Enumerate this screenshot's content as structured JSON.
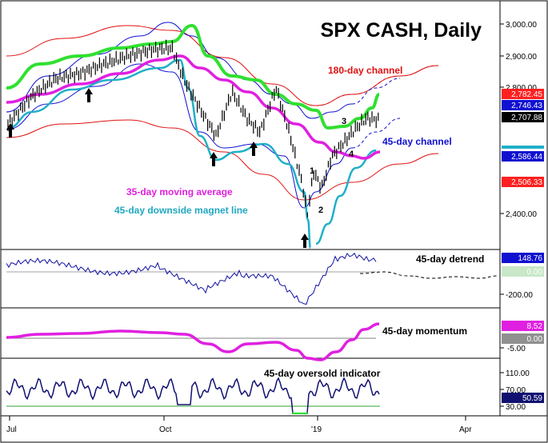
{
  "chart_data": [
    {
      "type": "line",
      "title": "SPX CASH, Daily",
      "ylim": [
        2330,
        3030
      ],
      "y_ticks": [
        "3,000.00",
        "2,900.00",
        "2,800.00",
        "2,400.00"
      ],
      "x_ticks": [
        "Jul",
        "Oct",
        "'19",
        "Apr"
      ],
      "annotations": {
        "channel_180": "180-day channel",
        "channel_45": "45-day channel",
        "ma_35": "35-day moving average",
        "magnet_45": "45-day downside magnet line",
        "wave_labels": [
          "1",
          "2",
          "3",
          "4"
        ]
      },
      "price_badges": [
        {
          "value": "2,782.45",
          "bg": "#ff2020",
          "fg": "#ffffff"
        },
        {
          "value": "2,746.43",
          "bg": "#1010d0",
          "fg": "#ffffff"
        },
        {
          "value": "2,707.88",
          "bg": "#000000",
          "fg": "#ffffff"
        },
        {
          "value": "2,586.44",
          "bg": "#1010d0",
          "fg": "#ffffff"
        },
        {
          "value": "2,506.33",
          "bg": "#ff2020",
          "fg": "#ffffff"
        }
      ],
      "series": [
        {
          "name": "",
          "color": "#000000",
          "kind": "price"
        },
        {
          "name": "35-day moving average",
          "color": "#e020e0"
        },
        {
          "name": "45-day downside magnet line",
          "color": "#20b0c8"
        },
        {
          "name": "45-day channel",
          "color": "#1010d0"
        },
        {
          "name": "180-day channel",
          "color": "#e01010"
        },
        {
          "name": "",
          "color": "#30e030",
          "kind": "upper band"
        }
      ],
      "arrow_lows": [
        "Jul",
        "Aug",
        "Oct",
        "Nov",
        "Dec"
      ]
    },
    {
      "type": "line",
      "title": "45-day detrend",
      "y_ticks": [
        "-200.00"
      ],
      "badges": [
        {
          "value": "148.76",
          "bg": "#1010d0",
          "fg": "#ffffff"
        },
        {
          "value": "0.00",
          "bg": "#c8e8c8",
          "fg": "#ffffff"
        }
      ],
      "series": [
        {
          "name": "45-day detrend",
          "color": "#1010a0"
        }
      ]
    },
    {
      "type": "line",
      "title": "45-day momentum",
      "y_ticks": [
        "-5.00"
      ],
      "badges": [
        {
          "value": "8.52",
          "bg": "#e020e0",
          "fg": "#ffffff"
        },
        {
          "value": "0.00",
          "bg": "#909090",
          "fg": "#ffffff"
        }
      ],
      "series": [
        {
          "name": "45-day momentum",
          "color": "#e020e0"
        }
      ]
    },
    {
      "type": "line",
      "title": "45-day oversold indicator",
      "y_ticks": [
        "110.00",
        "70.00",
        "30.00"
      ],
      "badges": [
        {
          "value": "50.59",
          "bg": "#101070",
          "fg": "#ffffff"
        }
      ],
      "series": [
        {
          "name": "45-day oversold indicator",
          "color": "#101070"
        }
      ]
    }
  ],
  "colors": {
    "price": "#000000",
    "ma": "#e020e0",
    "magnet": "#20b0c8",
    "channel45": "#1010d0",
    "channel180": "#e01010",
    "upper_band": "#30e030",
    "oversold_low": "#30e030"
  }
}
